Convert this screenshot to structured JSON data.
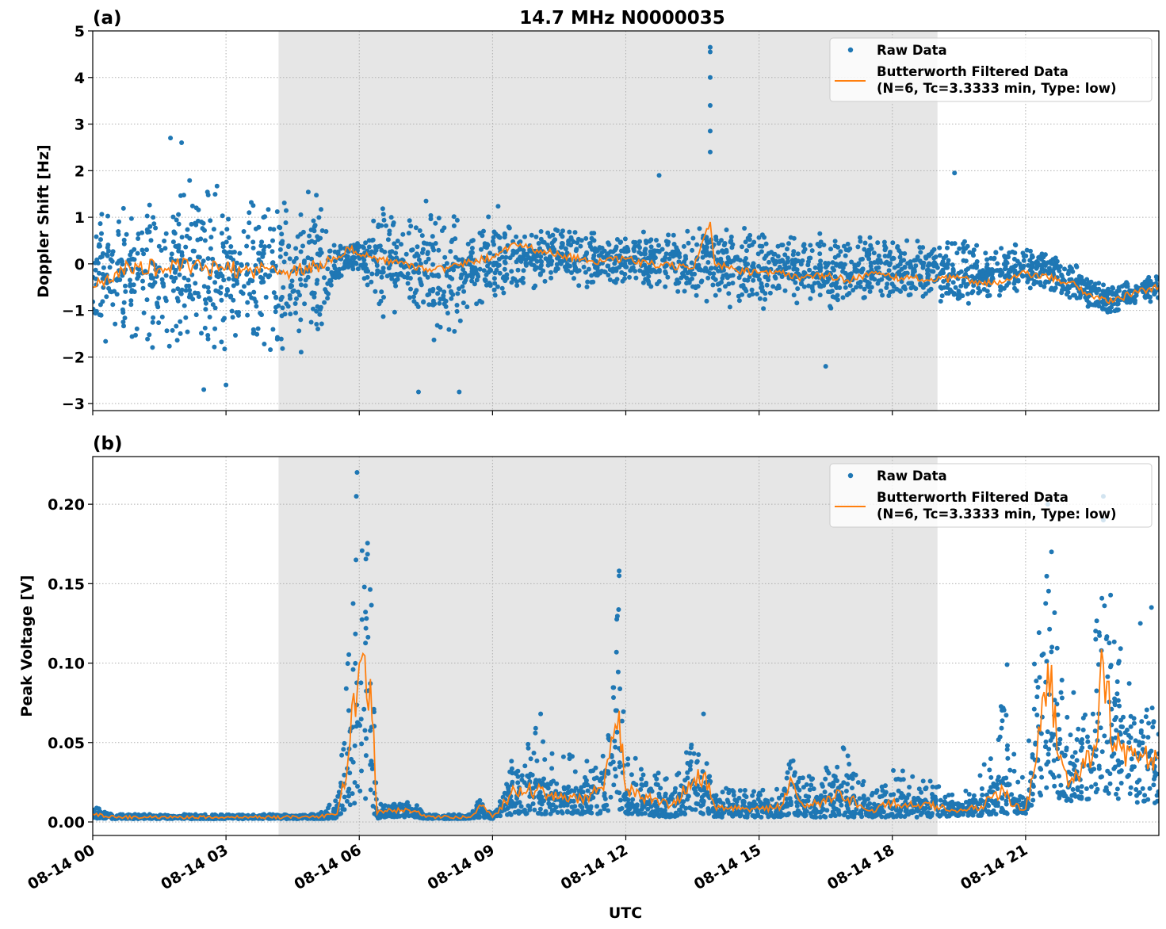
{
  "figure": {
    "title": "14.7 MHz N0000035",
    "xlabel": "UTC",
    "colors": {
      "raw": "#1f77b4",
      "filtered": "#ff7f0e",
      "shade": "#e6e6e6",
      "grid": "#b0b0b0"
    }
  },
  "legend": {
    "raw_label": "Raw Data",
    "filtered_label_line1": "Butterworth Filtered Data",
    "filtered_label_line2": "(N=6, Tc=3.3333 min, Type: low)"
  },
  "chart_data": [
    {
      "type": "scatter",
      "panel_label": "(a)",
      "title": "14.7 MHz N0000035",
      "ylabel": "Doppler Shift [Hz]",
      "xlabel": "",
      "ylim": [
        -3.15,
        5.0
      ],
      "xlim": [
        "08-14 00:00",
        "08-15 00:00"
      ],
      "yticks": [
        "−3",
        "−2",
        "−1",
        "0",
        "1",
        "2",
        "3",
        "4",
        "5"
      ],
      "ytick_values": [
        -3,
        -2,
        -1,
        0,
        1,
        2,
        3,
        4,
        5
      ],
      "xticks": [
        "08-14 00",
        "08-14 03",
        "08-14 06",
        "08-14 09",
        "08-14 12",
        "08-14 15",
        "08-14 18",
        "08-14 21"
      ],
      "grid": true,
      "legend_position": "top-right",
      "shaded_span": [
        "08-14 04:11",
        "08-14 19:01"
      ],
      "series": [
        {
          "name": "Raw Data",
          "kind": "scatter",
          "color": "#1f77b4"
        },
        {
          "name": "Butterworth Filtered Data (N=6, Tc=3.3333 min, Type: low)",
          "kind": "line",
          "color": "#ff7f0e"
        }
      ],
      "times": [
        "08-14 00:00",
        "08-14 00:30",
        "08-14 01:00",
        "08-14 01:30",
        "08-14 02:00",
        "08-14 02:30",
        "08-14 03:00",
        "08-14 03:30",
        "08-14 04:00",
        "08-14 04:30",
        "08-14 05:00",
        "08-14 05:30",
        "08-14 05:45",
        "08-14 06:00",
        "08-14 06:30",
        "08-14 07:00",
        "08-14 07:30",
        "08-14 08:00",
        "08-14 08:30",
        "08-14 09:00",
        "08-14 09:30",
        "08-14 10:00",
        "08-14 10:30",
        "08-14 11:00",
        "08-14 11:30",
        "08-14 12:00",
        "08-14 12:30",
        "08-14 13:00",
        "08-14 13:30",
        "08-14 13:54",
        "08-14 14:00",
        "08-14 14:30",
        "08-14 15:00",
        "08-14 15:30",
        "08-14 16:00",
        "08-14 16:30",
        "08-14 17:00",
        "08-14 17:30",
        "08-14 18:00",
        "08-14 18:30",
        "08-14 19:00",
        "08-14 19:30",
        "08-14 20:00",
        "08-14 20:30",
        "08-14 21:00",
        "08-14 21:30",
        "08-14 22:00",
        "08-14 22:30",
        "08-14 23:00",
        "08-14 23:30",
        "08-15 00:00"
      ],
      "filtered": [
        -0.5,
        -0.2,
        -0.05,
        -0.1,
        -0.05,
        -0.1,
        -0.1,
        -0.15,
        -0.1,
        -0.15,
        -0.05,
        0.1,
        0.35,
        0.2,
        0.1,
        0.0,
        -0.1,
        -0.1,
        0.05,
        0.15,
        0.45,
        0.3,
        0.2,
        0.1,
        0.05,
        0.1,
        0.0,
        -0.05,
        -0.1,
        0.9,
        0.0,
        -0.15,
        -0.2,
        -0.2,
        -0.3,
        -0.25,
        -0.35,
        -0.2,
        -0.3,
        -0.3,
        -0.35,
        -0.3,
        -0.4,
        -0.4,
        -0.2,
        -0.3,
        -0.4,
        -0.7,
        -0.8,
        -0.6,
        -0.5
      ],
      "raw_min": [
        -1.7,
        -1.9,
        -2.0,
        -2.0,
        -2.1,
        -2.1,
        -2.0,
        -2.0,
        -2.1,
        -2.0,
        -1.9,
        -0.6,
        -0.3,
        -0.2,
        -1.4,
        -0.8,
        -1.8,
        -1.7,
        -0.9,
        -1.4,
        -0.5,
        -0.6,
        -0.5,
        -0.7,
        -0.4,
        -0.5,
        -0.6,
        -0.7,
        -0.8,
        -1.2,
        -1.2,
        -1.0,
        -1.0,
        -0.9,
        -0.9,
        -1.1,
        -0.9,
        -0.9,
        -0.8,
        -0.9,
        -0.9,
        -0.9,
        -0.8,
        -0.8,
        -0.6,
        -0.6,
        -0.8,
        -1.1,
        -1.1,
        -0.9,
        -0.8
      ],
      "raw_max": [
        0.9,
        1.5,
        1.6,
        1.8,
        1.8,
        1.9,
        1.8,
        1.7,
        1.6,
        1.6,
        1.6,
        0.8,
        0.5,
        0.5,
        1.6,
        0.8,
        1.6,
        1.5,
        0.6,
        1.4,
        0.9,
        0.8,
        0.9,
        0.9,
        0.6,
        0.7,
        0.7,
        0.8,
        0.7,
        1.2,
        1.1,
        0.9,
        0.8,
        0.7,
        0.6,
        0.8,
        0.5,
        0.8,
        0.6,
        0.6,
        0.5,
        0.7,
        0.4,
        0.5,
        0.5,
        0.3,
        0.1,
        -0.3,
        -0.4,
        -0.3,
        -0.2
      ],
      "outliers": [
        [
          "08-14 13:54",
          4.65
        ],
        [
          "08-14 13:54",
          4.55
        ],
        [
          "08-14 13:54",
          4.0
        ],
        [
          "08-14 13:54",
          3.4
        ],
        [
          "08-14 13:54",
          2.85
        ],
        [
          "08-14 13:54",
          2.4
        ],
        [
          "08-14 12:45",
          1.9
        ],
        [
          "08-14 19:24",
          1.95
        ],
        [
          "08-14 01:45",
          2.7
        ],
        [
          "08-14 02:00",
          2.6
        ],
        [
          "08-14 07:20",
          -2.75
        ],
        [
          "08-14 02:30",
          -2.7
        ],
        [
          "08-14 08:15",
          -2.75
        ],
        [
          "08-14 16:30",
          -2.2
        ],
        [
          "08-14 03:00",
          -2.6
        ]
      ]
    },
    {
      "type": "scatter",
      "panel_label": "(b)",
      "ylabel": "Peak Voltage [V]",
      "xlabel": "UTC",
      "ylim": [
        -0.0085,
        0.23
      ],
      "xlim": [
        "08-14 00:00",
        "08-15 00:00"
      ],
      "yticks": [
        "0.00",
        "0.05",
        "0.10",
        "0.15",
        "0.20"
      ],
      "ytick_values": [
        0,
        0.05,
        0.1,
        0.15,
        0.2
      ],
      "xticks": [
        "08-14 00",
        "08-14 03",
        "08-14 06",
        "08-14 09",
        "08-14 12",
        "08-14 15",
        "08-14 18",
        "08-14 21"
      ],
      "grid": true,
      "legend_position": "top-right",
      "shaded_span": [
        "08-14 04:11",
        "08-14 19:01"
      ],
      "series": [
        {
          "name": "Raw Data",
          "kind": "scatter",
          "color": "#1f77b4"
        },
        {
          "name": "Butterworth Filtered Data (N=6, Tc=3.3333 min, Type: low)",
          "kind": "line",
          "color": "#ff7f0e"
        }
      ],
      "times": [
        "08-14 00:00",
        "08-14 00:30",
        "08-14 01:00",
        "08-14 02:00",
        "08-14 03:00",
        "08-14 04:00",
        "08-14 05:00",
        "08-14 05:30",
        "08-14 05:45",
        "08-14 06:00",
        "08-14 06:15",
        "08-14 06:24",
        "08-14 06:30",
        "08-14 07:15",
        "08-14 07:30",
        "08-14 08:30",
        "08-14 08:45",
        "08-14 09:00",
        "08-14 09:30",
        "08-14 10:00",
        "08-14 10:30",
        "08-14 11:00",
        "08-14 11:30",
        "08-14 11:51",
        "08-14 12:00",
        "08-14 12:30",
        "08-14 13:00",
        "08-14 13:30",
        "08-14 13:45",
        "08-14 14:00",
        "08-14 14:30",
        "08-14 15:00",
        "08-14 15:30",
        "08-14 15:45",
        "08-14 16:00",
        "08-14 16:30",
        "08-14 16:45",
        "08-14 17:00",
        "08-14 17:30",
        "08-14 18:00",
        "08-14 18:30",
        "08-14 19:00",
        "08-14 19:30",
        "08-14 20:00",
        "08-14 20:30",
        "08-14 20:45",
        "08-14 21:00",
        "08-14 21:15",
        "08-14 21:30",
        "08-14 21:45",
        "08-14 22:00",
        "08-14 22:30",
        "08-14 22:45",
        "08-14 23:00",
        "08-14 23:30",
        "08-15 00:00"
      ],
      "filtered": [
        0.005,
        0.003,
        0.003,
        0.003,
        0.003,
        0.003,
        0.003,
        0.005,
        0.04,
        0.1,
        0.09,
        0.005,
        0.007,
        0.007,
        0.003,
        0.003,
        0.01,
        0.003,
        0.02,
        0.02,
        0.015,
        0.015,
        0.02,
        0.07,
        0.02,
        0.015,
        0.01,
        0.025,
        0.03,
        0.01,
        0.008,
        0.008,
        0.01,
        0.025,
        0.01,
        0.012,
        0.02,
        0.015,
        0.007,
        0.012,
        0.01,
        0.01,
        0.007,
        0.01,
        0.02,
        0.01,
        0.008,
        0.04,
        0.1,
        0.04,
        0.025,
        0.04,
        0.1,
        0.05,
        0.04,
        0.04
      ],
      "raw_min": [
        0.002,
        0.002,
        0.002,
        0.002,
        0.002,
        0.002,
        0.002,
        0.002,
        0.01,
        0.01,
        0.01,
        0.002,
        0.003,
        0.003,
        0.002,
        0.002,
        0.003,
        0.002,
        0.005,
        0.005,
        0.005,
        0.005,
        0.005,
        0.008,
        0.005,
        0.004,
        0.003,
        0.005,
        0.005,
        0.003,
        0.003,
        0.003,
        0.003,
        0.005,
        0.003,
        0.003,
        0.004,
        0.003,
        0.003,
        0.003,
        0.003,
        0.003,
        0.004,
        0.004,
        0.005,
        0.005,
        0.005,
        0.015,
        0.02,
        0.015,
        0.012,
        0.015,
        0.02,
        0.015,
        0.012,
        0.012
      ],
      "raw_max": [
        0.01,
        0.004,
        0.004,
        0.004,
        0.004,
        0.004,
        0.004,
        0.015,
        0.12,
        0.2,
        0.18,
        0.01,
        0.013,
        0.013,
        0.004,
        0.004,
        0.02,
        0.004,
        0.045,
        0.06,
        0.055,
        0.04,
        0.045,
        0.158,
        0.04,
        0.04,
        0.025,
        0.06,
        0.05,
        0.025,
        0.02,
        0.02,
        0.03,
        0.055,
        0.03,
        0.04,
        0.05,
        0.045,
        0.02,
        0.035,
        0.03,
        0.025,
        0.015,
        0.03,
        0.08,
        0.05,
        0.03,
        0.12,
        0.19,
        0.1,
        0.08,
        0.09,
        0.19,
        0.12,
        0.1,
        0.08
      ],
      "outliers": [
        [
          "08-14 05:57",
          0.22
        ],
        [
          "08-14 05:56",
          0.205
        ],
        [
          "08-14 11:51",
          0.158
        ],
        [
          "08-14 11:51",
          0.155
        ],
        [
          "08-14 21:30",
          0.2
        ],
        [
          "08-14 22:45",
          0.205
        ],
        [
          "08-14 22:45",
          0.19
        ],
        [
          "08-14 21:35",
          0.17
        ],
        [
          "08-14 23:50",
          0.135
        ],
        [
          "08-14 23:35",
          0.125
        ],
        [
          "08-14 20:35",
          0.099
        ],
        [
          "08-14 10:05",
          0.068
        ],
        [
          "08-14 13:45",
          0.068
        ]
      ]
    }
  ]
}
